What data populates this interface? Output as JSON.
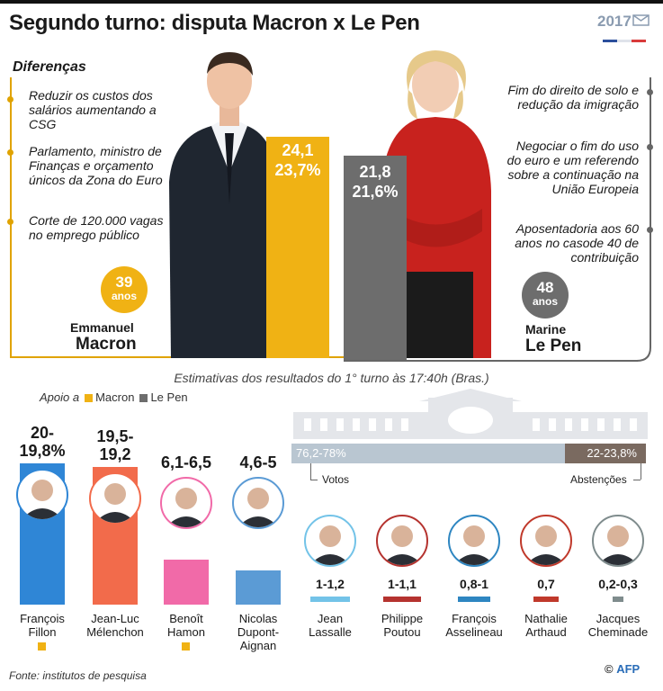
{
  "title": "Segundo turno: disputa Macron x Le Pen",
  "logo": {
    "year": "2017"
  },
  "subtitle": "Diferenças",
  "macron": {
    "first_name": "Emmanuel",
    "last_name": "Macron",
    "age_number": "39",
    "age_unit": "anos",
    "estimate": "24,1",
    "estimate_pct": "23,7%",
    "proposals": [
      "Reduzir os custos dos salários aumentando a CSG",
      "Parlamento, ministro de Finanças e orçamento únicos da Zona do Euro",
      "Corte de 120.000 vagas no emprego público"
    ]
  },
  "lepen": {
    "first_name": "Marine",
    "last_name": "Le Pen",
    "age_number": "48",
    "age_unit": "anos",
    "estimate": "21,8",
    "estimate_pct": "21,6%",
    "proposals": [
      "Fim do direito de solo e redução da imigração",
      "Negociar o fim do uso do euro e um referendo sobre a continuação na União Europeia",
      "Aposentadoria aos 60 anos no casode 40 de contribuição"
    ]
  },
  "estimate_caption": "Estimativas dos resultados do 1° turno às 17:40h (Bras.)",
  "legend": {
    "prefix": "Apoio a",
    "macron": "Macron",
    "lepen": "Le Pen"
  },
  "colors": {
    "macron": "#f0b214",
    "lepen": "#6d6d6d",
    "frame": "#e0a300"
  },
  "turnout": {
    "votes_value": "76,2-78%",
    "votes_label": "Votos",
    "abstention_value": "22-23,8%",
    "abstention_label": "Abstenções",
    "votes_share": 77.1
  },
  "chart_data": {
    "type": "bar",
    "title": "Estimativas dos resultados do 1° turno às 17:40h (Bras.)",
    "categories": [
      "François Fillon",
      "Jean-Luc Mélenchon",
      "Benoît Hamon",
      "Nicolas Dupont-Aignan",
      "Jean Lassalle",
      "Philippe Poutou",
      "François Asselineau",
      "Nathalie Arthaud",
      "Jacques Cheminade"
    ],
    "values": [
      19.9,
      19.35,
      6.3,
      4.8,
      1.1,
      1.05,
      0.9,
      0.7,
      0.25
    ],
    "ylim": [
      0,
      20
    ],
    "candidates": [
      {
        "name_lines": [
          "François",
          "Fillon"
        ],
        "range": "20-19,8%",
        "range_lines": [
          "20-",
          "19,8%"
        ],
        "value": 19.9,
        "color": "#2f86d6",
        "supports": "Macron",
        "big": true
      },
      {
        "name_lines": [
          "Jean-Luc",
          "Mélenchon"
        ],
        "range": "19,5-19,2",
        "range_lines": [
          "19,5-",
          "19,2"
        ],
        "value": 19.35,
        "color": "#f26b4b",
        "supports": "",
        "big": true
      },
      {
        "name_lines": [
          "Benoît",
          "Hamon"
        ],
        "range": "6,1-6,5",
        "range_lines": [
          "6,1-6,5"
        ],
        "value": 6.3,
        "color": "#f16aa8",
        "supports": "Macron",
        "big": false
      },
      {
        "name_lines": [
          "Nicolas",
          "Dupont-",
          "Aignan"
        ],
        "range": "4,6-5",
        "range_lines": [
          "4,6-5"
        ],
        "value": 4.8,
        "color": "#5b9bd5",
        "supports": "",
        "big": false
      },
      {
        "name_lines": [
          "Jean",
          "Lassalle"
        ],
        "range": "1-1,2",
        "range_lines": [
          "1-1,2"
        ],
        "value": 1.1,
        "color": "#73c3e8",
        "supports": "",
        "big": false
      },
      {
        "name_lines": [
          "Philippe",
          "Poutou"
        ],
        "range": "1-1,1",
        "range_lines": [
          "1-1,1"
        ],
        "value": 1.05,
        "color": "#b5332f",
        "supports": "",
        "big": false
      },
      {
        "name_lines": [
          "François",
          "Asselineau"
        ],
        "range": "0,8-1",
        "range_lines": [
          "0,8-1"
        ],
        "value": 0.9,
        "color": "#2e86c1",
        "supports": "",
        "big": false
      },
      {
        "name_lines": [
          "Nathalie",
          "Arthaud"
        ],
        "range": "0,7",
        "range_lines": [
          "0,7"
        ],
        "value": 0.7,
        "color": "#c0392b",
        "supports": "",
        "big": false
      },
      {
        "name_lines": [
          "Jacques",
          "Cheminade"
        ],
        "range": "0,2-0,3",
        "range_lines": [
          "0,2-0,3"
        ],
        "value": 0.25,
        "color": "#7f8c8d",
        "supports": "",
        "big": false
      }
    ]
  },
  "footer": {
    "source": "Fonte: institutos de pesquisa",
    "credit_prefix": "©",
    "credit": "AFP"
  }
}
